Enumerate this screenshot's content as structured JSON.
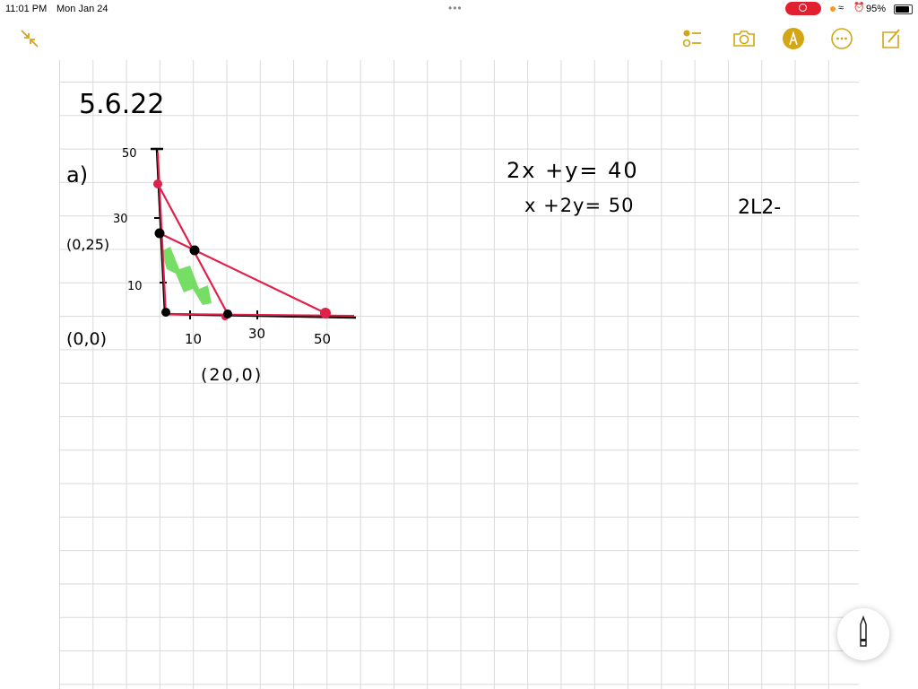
{
  "status_bar": {
    "time": "11:01 PM",
    "date": "Mon Jan 24",
    "battery": "95%"
  },
  "toolbar": {
    "accent": "#d4a514",
    "icons": [
      "collapse-icon",
      "checklist-icon",
      "camera-icon",
      "markup-pen-icon",
      "more-icon",
      "compose-icon"
    ]
  },
  "note": {
    "title": "5.6.22",
    "part_label": "a)",
    "y_ticks": [
      "50",
      "30",
      "10"
    ],
    "x_ticks": [
      "10",
      "30",
      "50"
    ],
    "points": [
      "(0,25)",
      "(0,0)",
      "(20,0)"
    ],
    "equations": [
      "2x +y= 40",
      "x +2y= 50"
    ],
    "side_note": "2L2-",
    "colors": {
      "line": "#e0204a",
      "axis": "#000000",
      "shade": "#5fd84a"
    }
  }
}
